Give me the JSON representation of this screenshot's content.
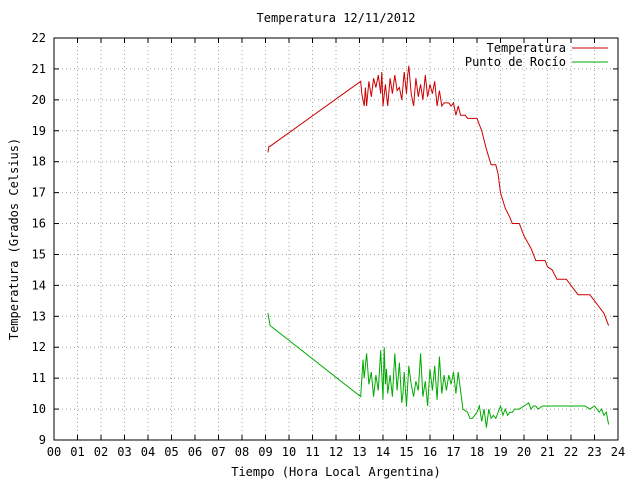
{
  "chart_data": {
    "type": "line",
    "title": "Temperatura 12/11/2012",
    "xlabel": "Tiempo (Hora Local Argentina)",
    "ylabel": "Temperatura (Grados Celsius)",
    "xlim": [
      0,
      24
    ],
    "ylim": [
      9,
      22
    ],
    "x_ticks": [
      "00",
      "01",
      "02",
      "03",
      "04",
      "05",
      "06",
      "07",
      "08",
      "09",
      "10",
      "11",
      "12",
      "13",
      "14",
      "15",
      "16",
      "17",
      "18",
      "19",
      "20",
      "21",
      "22",
      "23",
      "24"
    ],
    "y_ticks": [
      "9",
      "10",
      "11",
      "12",
      "13",
      "14",
      "15",
      "16",
      "17",
      "18",
      "19",
      "20",
      "21",
      "22"
    ],
    "grid": true,
    "legend_position": "top-right",
    "series": [
      {
        "name": "Temperatura",
        "color": "#cc0000",
        "x": [
          9.1,
          9.15,
          9.2,
          13.05,
          13.1,
          13.2,
          13.25,
          13.3,
          13.4,
          13.5,
          13.6,
          13.7,
          13.8,
          13.9,
          13.95,
          14.0,
          14.1,
          14.2,
          14.3,
          14.4,
          14.5,
          14.6,
          14.7,
          14.8,
          14.9,
          15.0,
          15.05,
          15.1,
          15.2,
          15.3,
          15.4,
          15.5,
          15.6,
          15.7,
          15.8,
          15.9,
          16.0,
          16.1,
          16.2,
          16.3,
          16.4,
          16.5,
          16.6,
          16.7,
          16.8,
          16.9,
          17.0,
          17.1,
          17.2,
          17.3,
          17.5,
          17.6,
          17.7,
          18.0,
          18.2,
          18.4,
          18.6,
          18.8,
          18.9,
          19.0,
          19.2,
          19.4,
          19.5,
          19.6,
          19.8,
          20.0,
          20.3,
          20.5,
          20.7,
          20.9,
          21.0,
          21.2,
          21.4,
          21.6,
          21.8,
          22.0,
          22.3,
          22.6,
          22.8,
          23.0,
          23.1,
          23.2,
          23.3,
          23.4,
          23.5,
          23.6
        ],
        "y": [
          18.3,
          18.5,
          18.5,
          20.6,
          20.2,
          19.8,
          20.4,
          19.8,
          20.6,
          20.1,
          20.7,
          20.4,
          20.8,
          20.2,
          20.9,
          19.8,
          20.5,
          19.8,
          20.7,
          20.2,
          20.8,
          20.3,
          20.4,
          20.0,
          20.9,
          20.2,
          20.8,
          21.1,
          20.2,
          19.8,
          20.7,
          20.1,
          20.5,
          20.0,
          20.8,
          20.1,
          20.5,
          20.2,
          20.6,
          19.8,
          20.3,
          19.8,
          19.9,
          19.9,
          19.9,
          19.8,
          19.9,
          19.5,
          19.8,
          19.5,
          19.5,
          19.4,
          19.4,
          19.4,
          19.0,
          18.4,
          17.9,
          17.9,
          17.6,
          17.0,
          16.5,
          16.2,
          16.0,
          16.0,
          16.0,
          15.6,
          15.2,
          14.8,
          14.8,
          14.8,
          14.6,
          14.5,
          14.2,
          14.2,
          14.2,
          14.0,
          13.7,
          13.7,
          13.7,
          13.5,
          13.4,
          13.3,
          13.2,
          13.1,
          12.9,
          12.7
        ]
      },
      {
        "name": "Punto de Rocío",
        "color": "#00aa00",
        "x": [
          9.1,
          9.15,
          9.2,
          13.05,
          13.15,
          13.2,
          13.3,
          13.4,
          13.5,
          13.6,
          13.7,
          13.8,
          13.9,
          14.0,
          14.05,
          14.1,
          14.15,
          14.2,
          14.3,
          14.4,
          14.5,
          14.6,
          14.7,
          14.8,
          14.85,
          14.9,
          15.0,
          15.1,
          15.2,
          15.3,
          15.4,
          15.5,
          15.6,
          15.7,
          15.8,
          15.9,
          16.0,
          16.1,
          16.2,
          16.3,
          16.4,
          16.5,
          16.6,
          16.7,
          16.8,
          16.9,
          17.0,
          17.1,
          17.2,
          17.4,
          17.6,
          17.7,
          17.8,
          18.0,
          18.1,
          18.2,
          18.3,
          18.4,
          18.5,
          18.6,
          18.7,
          18.8,
          19.0,
          19.1,
          19.2,
          19.3,
          19.4,
          19.5,
          19.6,
          19.8,
          20.0,
          20.2,
          20.3,
          20.4,
          20.5,
          20.6,
          20.8,
          21.0,
          21.2,
          21.4,
          21.6,
          21.8,
          22.0,
          22.2,
          22.4,
          22.6,
          22.8,
          23.0,
          23.1,
          23.2,
          23.3,
          23.4,
          23.5,
          23.6
        ],
        "y": [
          13.1,
          12.9,
          12.7,
          10.4,
          11.6,
          11.0,
          11.8,
          10.8,
          11.2,
          10.4,
          11.1,
          10.6,
          11.9,
          10.3,
          12.0,
          10.8,
          11.3,
          10.5,
          11.1,
          10.4,
          11.8,
          10.6,
          11.5,
          10.2,
          10.5,
          11.2,
          10.1,
          11.4,
          10.8,
          10.4,
          10.9,
          10.6,
          11.8,
          10.4,
          10.9,
          10.1,
          11.3,
          10.6,
          11.4,
          10.3,
          11.7,
          10.5,
          11.1,
          10.6,
          11.1,
          10.8,
          11.2,
          10.5,
          11.2,
          10.0,
          9.9,
          9.7,
          9.7,
          9.9,
          10.1,
          9.6,
          10.0,
          9.4,
          10.0,
          9.7,
          9.8,
          9.7,
          10.1,
          9.8,
          10.0,
          9.8,
          9.9,
          9.9,
          10.0,
          10.0,
          10.1,
          10.2,
          10.0,
          10.1,
          10.1,
          10.0,
          10.1,
          10.1,
          10.1,
          10.1,
          10.1,
          10.1,
          10.1,
          10.1,
          10.1,
          10.1,
          10.0,
          10.1,
          10.0,
          9.9,
          10.0,
          9.8,
          9.9,
          9.5
        ]
      }
    ]
  }
}
